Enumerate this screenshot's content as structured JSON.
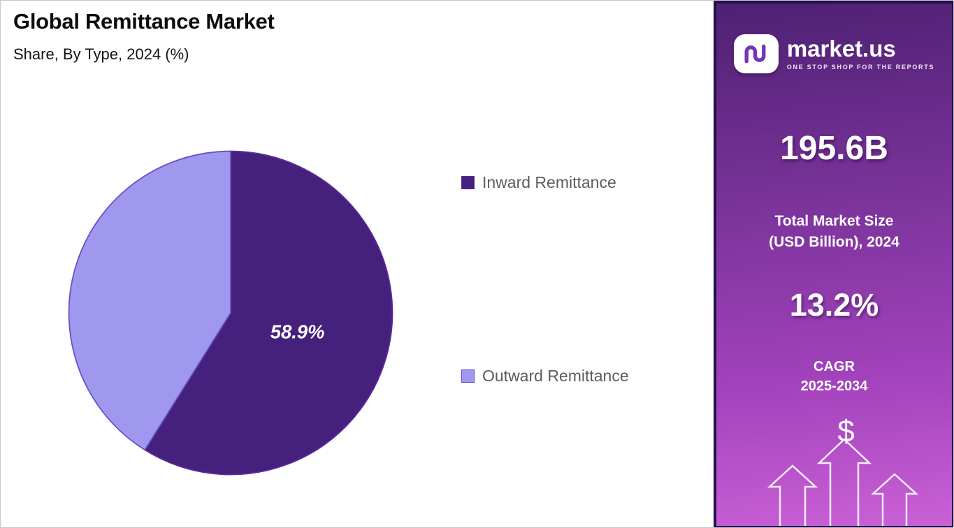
{
  "header": {
    "title": "Global Remittance Market",
    "subtitle": "Share, By Type, 2024 (%)"
  },
  "chart_data": {
    "type": "pie",
    "title": "Global Remittance Market",
    "subtitle": "Share, By Type, 2024 (%)",
    "unit": "%",
    "start_angle_deg": 0,
    "direction": "clockwise",
    "legend_position": "right",
    "slices": [
      {
        "label": "Inward Remittance",
        "value": 58.9,
        "display_label": "58.9%",
        "color": "#46207d",
        "border_color": "#5e2b9e"
      },
      {
        "label": "Outward Remittance",
        "value": 41.1,
        "display_label": "",
        "color": "#9f98ee",
        "border_color": "#6650c6"
      }
    ]
  },
  "sidebar": {
    "logo": {
      "brand": "market.us",
      "tagline": "ONE STOP SHOP FOR THE REPORTS"
    },
    "stats": [
      {
        "value": "195.6B",
        "label_lines": [
          "Total Market Size",
          "(USD Billion), 2024"
        ]
      },
      {
        "value": "13.2%",
        "label_lines": [
          "CAGR",
          "2025-2034"
        ]
      }
    ],
    "dollar_symbol": "$",
    "colors": {
      "gradient_top": "#4e2173",
      "gradient_mid": "#a343bd",
      "gradient_bottom": "#cb60d6",
      "panel_border": "#250f52",
      "logo_mark": "#7335b8"
    }
  }
}
